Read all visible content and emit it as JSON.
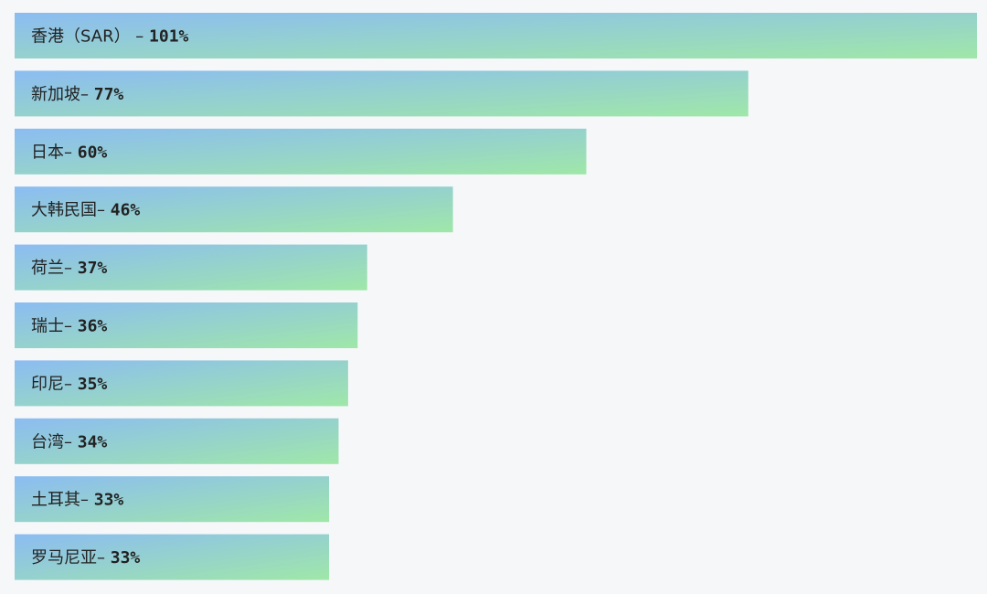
{
  "colors": {
    "background": "#f5f7f9",
    "bar_gradient_start": "#8bbcf2",
    "bar_gradient_end": "#9fe7a8",
    "text": "#222222"
  },
  "chart_data": {
    "type": "bar",
    "orientation": "horizontal",
    "categories": [
      "香港（SAR）",
      "新加坡",
      "日本",
      "大韩民国",
      "荷兰",
      "瑞士",
      "印尼",
      "台湾",
      "土耳其",
      "罗马尼亚"
    ],
    "values": [
      101,
      77,
      60,
      46,
      37,
      36,
      35,
      34,
      33,
      33
    ],
    "value_labels": [
      "101%",
      "77%",
      "60%",
      "46%",
      "37%",
      "36%",
      "35%",
      "34%",
      "33%",
      "33%"
    ],
    "separators": [
      " – ",
      "– ",
      "– ",
      "– ",
      "– ",
      "– ",
      "– ",
      "– ",
      "– ",
      "– "
    ],
    "unit": "%",
    "xlim": [
      0,
      101
    ],
    "grid": false,
    "legend": "none"
  }
}
